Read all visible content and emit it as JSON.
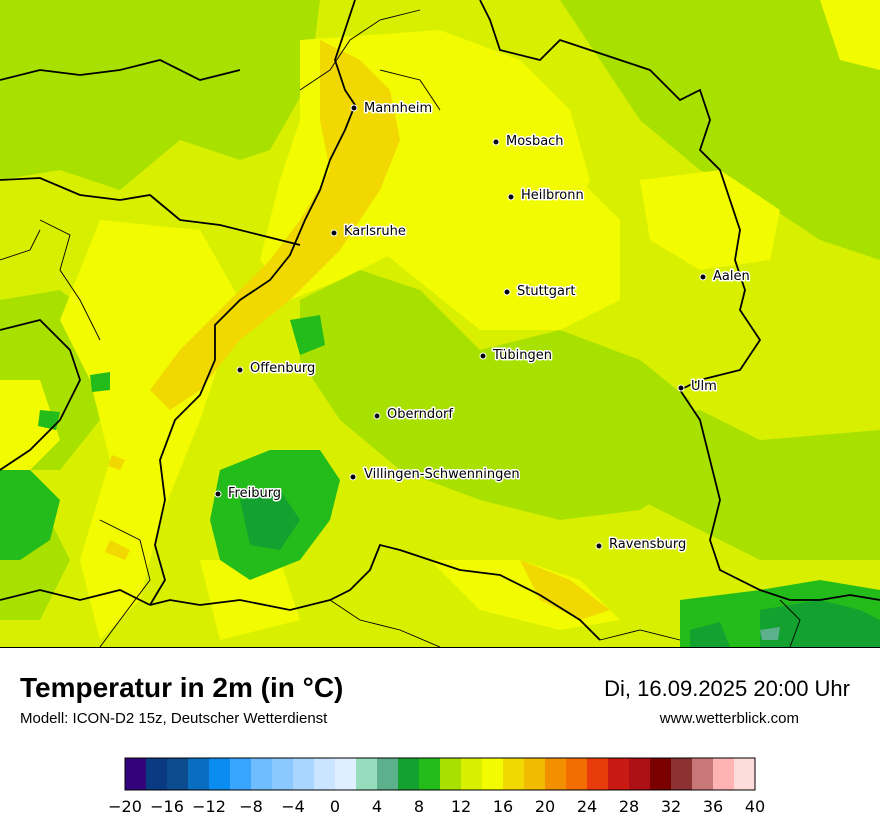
{
  "map": {
    "cities": [
      {
        "name": "Mannheim"
      },
      {
        "name": "Mosbach"
      },
      {
        "name": "Heilbronn"
      },
      {
        "name": "Karlsruhe"
      },
      {
        "name": "Aalen"
      },
      {
        "name": "Stuttgart"
      },
      {
        "name": "Tübingen"
      },
      {
        "name": "Offenburg"
      },
      {
        "name": "Ulm"
      },
      {
        "name": "Oberndorf"
      },
      {
        "name": "Villingen-Schwenningen"
      },
      {
        "name": "Freiburg"
      },
      {
        "name": "Ravensburg"
      }
    ],
    "colors": {
      "c16": "#f2fb00",
      "c18": "#f0d800",
      "c14": "#d8f000",
      "c12": "#a8e000",
      "c10": "#24bc1a",
      "c8": "#13a230",
      "border": "#000000"
    }
  },
  "header": {
    "title": "Temperatur in 2m (in °C)",
    "subtitle": "Modell: ICON-D2 15z, Deutscher Wetterdienst",
    "datetime": "Di, 16.09.2025 20:00 Uhr",
    "website": "www.wetterblick.com"
  },
  "legend": {
    "colors": [
      "#32037a",
      "#0a3a82",
      "#0d4d8f",
      "#0a6ec0",
      "#0a8cf0",
      "#3aa5ff",
      "#6fbcff",
      "#8ac8ff",
      "#a9d6ff",
      "#c9e5ff",
      "#e0efff",
      "#98dcbe",
      "#5cb08c",
      "#13a230",
      "#24bc1a",
      "#a8e000",
      "#d8f000",
      "#f2fb00",
      "#f0d800",
      "#f2bb00",
      "#f29000",
      "#f26e00",
      "#e83c0c",
      "#c81a12",
      "#ad1014",
      "#7a0000",
      "#8c3232",
      "#c87878",
      "#ffb4b4",
      "#ffdcdc"
    ],
    "ticks": [
      "−20",
      "−16",
      "−12",
      "−8",
      "−4",
      "0",
      "4",
      "8",
      "12",
      "16",
      "20",
      "24",
      "28",
      "32",
      "36",
      "40"
    ]
  }
}
